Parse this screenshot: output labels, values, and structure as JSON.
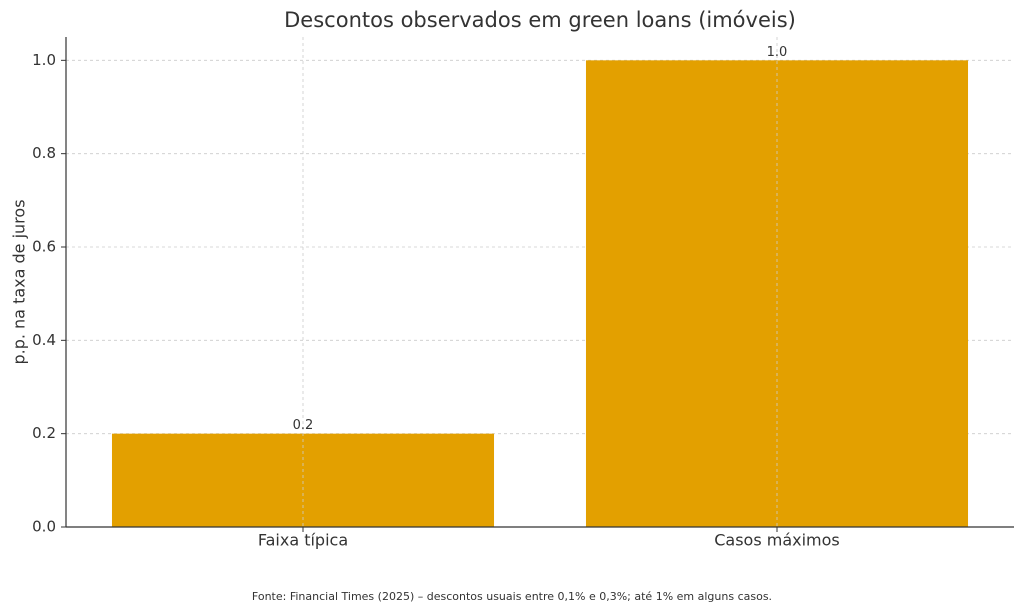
{
  "chart_data": {
    "type": "bar",
    "title": "Descontos observados em green loans (imóveis)",
    "y_label": "p.p. na taxa de juros",
    "categories": [
      "Faixa típica",
      "Casos máximos"
    ],
    "values": [
      0.2,
      1.0
    ],
    "value_labels": [
      "0.2",
      "1.0"
    ],
    "color": "#e3a000",
    "ylim": [
      0,
      1.05
    ],
    "yticks": [
      {
        "value": 0,
        "label": "0.0"
      },
      0.2,
      0.4,
      0.6,
      0.8,
      {
        "value": 1,
        "label": "1.0"
      }
    ],
    "grid": true,
    "source": "Fonte: Financial Times (2025) – descontos usuais entre 0,1% e 0,3%; até 1% em alguns casos."
  }
}
